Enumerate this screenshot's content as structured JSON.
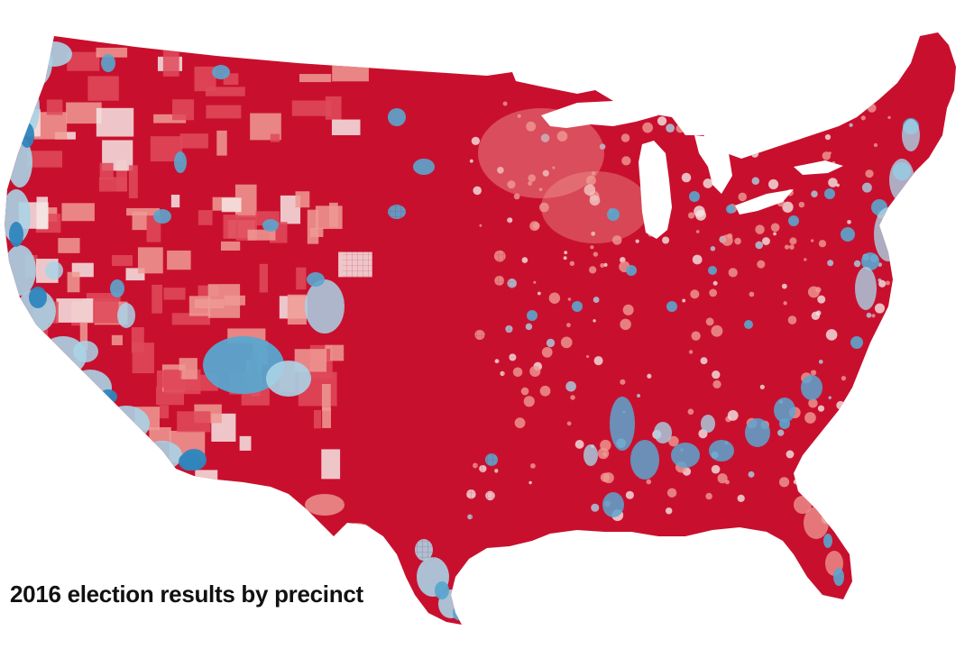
{
  "caption": "2016 election results by precinct",
  "map": {
    "colors": {
      "republican_strong": "#c8102e",
      "republican_medium": "#df4a5a",
      "republican_light": "#ef9a94",
      "tossup": "#f5e6e4",
      "democratic_light": "#a9d3e6",
      "democratic_medium": "#5aa6cf",
      "democratic_strong": "#2f86bd"
    }
  }
}
